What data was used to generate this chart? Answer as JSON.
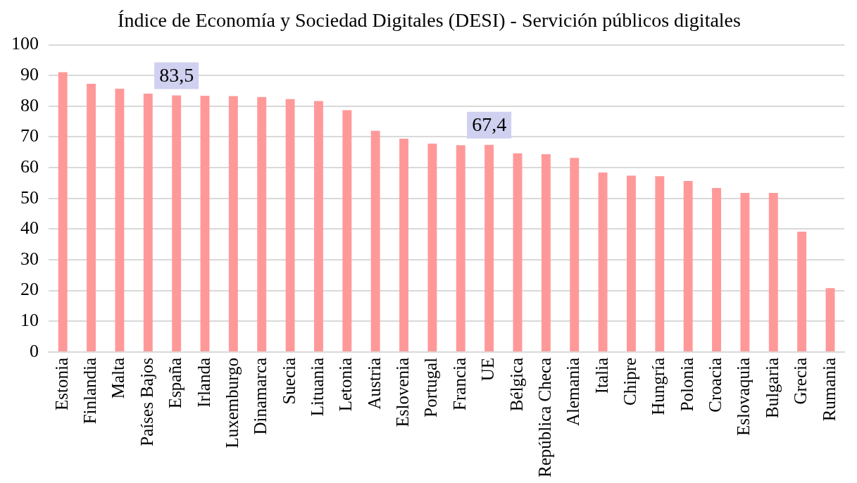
{
  "chart_data": {
    "type": "bar",
    "title": "Índice de Economía y Sociedad Digitales (DESI) - Servición públicos digitales",
    "categories": [
      "Estonia",
      "Finlandia",
      "Malta",
      "Países Bajos",
      "España",
      "Irlanda",
      "Luxemburgo",
      "Dinamarca",
      "Suecia",
      "Lituania",
      "Letonia",
      "Austria",
      "Eslovenia",
      "Portugal",
      "Francia",
      "UE",
      "Bélgica",
      "República Checa",
      "Alemania",
      "Italia",
      "Chipre",
      "Hungría",
      "Polonia",
      "Croacia",
      "Eslovaquia",
      "Bulgaria",
      "Grecia",
      "Rumania"
    ],
    "values": [
      91.1,
      87.3,
      85.7,
      84.1,
      83.5,
      83.4,
      83.3,
      83.0,
      82.3,
      81.7,
      78.7,
      72.0,
      69.4,
      67.8,
      67.3,
      67.4,
      64.7,
      64.4,
      63.2,
      58.4,
      57.4,
      57.2,
      55.7,
      53.4,
      51.8,
      51.8,
      39.2,
      20.8
    ],
    "value_labels": [
      null,
      null,
      null,
      null,
      "83,5",
      null,
      null,
      null,
      null,
      null,
      null,
      null,
      null,
      null,
      null,
      "67,4",
      null,
      null,
      null,
      null,
      null,
      null,
      null,
      null,
      null,
      null,
      null,
      null
    ],
    "color": "#ff9999",
    "ylim": [
      0,
      100
    ],
    "yticks": [
      0,
      10,
      20,
      30,
      40,
      50,
      60,
      70,
      80,
      90,
      100
    ],
    "grid": "y"
  }
}
